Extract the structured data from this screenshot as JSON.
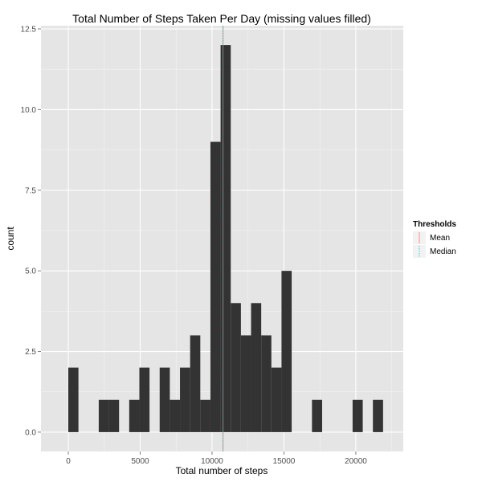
{
  "chart_data": {
    "type": "bar",
    "title": "Total Number of Steps Taken Per Day (missing values filled)",
    "xlabel": "Total number of steps",
    "ylabel": "count",
    "xlim": [
      -1900,
      23300
    ],
    "ylim": [
      -0.6,
      12.6
    ],
    "x_ticks": [
      0,
      5000,
      10000,
      15000,
      20000
    ],
    "x_tick_labels": [
      "0",
      "5000",
      "10000",
      "15000",
      "20000"
    ],
    "y_ticks": [
      0,
      2.5,
      5,
      7.5,
      10,
      12.5
    ],
    "y_tick_labels": [
      "0.0",
      "2.5",
      "5.0",
      "7.5",
      "10.0",
      "12.5"
    ],
    "bin_width": 706.25,
    "bins": [
      {
        "x_start": 0,
        "count": 2
      },
      {
        "x_start": 706.25,
        "count": 0
      },
      {
        "x_start": 1412.5,
        "count": 0
      },
      {
        "x_start": 2118.75,
        "count": 1
      },
      {
        "x_start": 2825,
        "count": 1
      },
      {
        "x_start": 3531.25,
        "count": 0
      },
      {
        "x_start": 4237.5,
        "count": 1
      },
      {
        "x_start": 4943.75,
        "count": 2
      },
      {
        "x_start": 5650,
        "count": 0
      },
      {
        "x_start": 6356.25,
        "count": 2
      },
      {
        "x_start": 7062.5,
        "count": 1
      },
      {
        "x_start": 7768.75,
        "count": 2
      },
      {
        "x_start": 8475,
        "count": 3
      },
      {
        "x_start": 9181.25,
        "count": 1
      },
      {
        "x_start": 9887.5,
        "count": 9
      },
      {
        "x_start": 10593.75,
        "count": 12
      },
      {
        "x_start": 11300,
        "count": 4
      },
      {
        "x_start": 12006.25,
        "count": 3
      },
      {
        "x_start": 12712.5,
        "count": 4
      },
      {
        "x_start": 13418.75,
        "count": 3
      },
      {
        "x_start": 14125,
        "count": 2
      },
      {
        "x_start": 14831.25,
        "count": 5
      },
      {
        "x_start": 15537.5,
        "count": 0
      },
      {
        "x_start": 16243.75,
        "count": 0
      },
      {
        "x_start": 16950,
        "count": 1
      },
      {
        "x_start": 17656.25,
        "count": 0
      },
      {
        "x_start": 18362.5,
        "count": 0
      },
      {
        "x_start": 19068.75,
        "count": 0
      },
      {
        "x_start": 19775,
        "count": 1
      },
      {
        "x_start": 20481.25,
        "count": 0
      },
      {
        "x_start": 21187.5,
        "count": 1
      }
    ],
    "thresholds": [
      {
        "name": "Mean",
        "value": 10766,
        "color": "#f8766d",
        "linetype": "solid"
      },
      {
        "name": "Median",
        "value": 10766,
        "color": "#00bfc4",
        "linetype": "dotted"
      }
    ],
    "legend_title": "Thresholds",
    "legend_position": "right",
    "bar_color": "#333333",
    "panel_background": "#e5e5e5",
    "grid": true
  }
}
